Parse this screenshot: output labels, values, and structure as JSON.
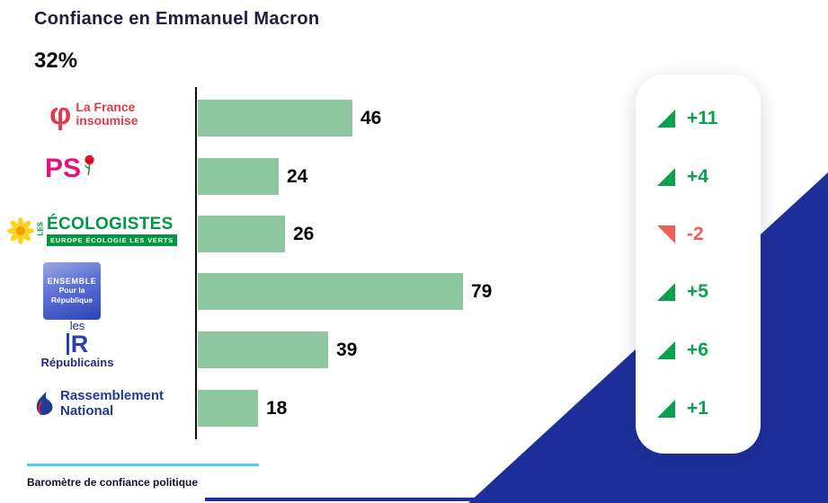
{
  "header": {
    "title": "Confiance en Emmanuel Macron",
    "score": "32%"
  },
  "chart_data": {
    "type": "bar",
    "orientation": "horizontal",
    "title": "Confiance en Emmanuel Macron",
    "overall_value": "32%",
    "categories": [
      "La France insoumise",
      "PS",
      "Les Écologistes",
      "Ensemble pour la République",
      "Les Républicains",
      "Rassemblement National"
    ],
    "values": [
      46,
      24,
      26,
      79,
      39,
      18
    ],
    "changes": [
      {
        "label": "+11",
        "trend": "down"
      },
      {
        "label": "+4",
        "trend": "down"
      },
      {
        "label": "-2",
        "trend": "up"
      },
      {
        "label": "+5",
        "trend": "down"
      },
      {
        "label": "+6",
        "trend": "down"
      },
      {
        "label": "+1",
        "trend": "down"
      }
    ],
    "xlim": [
      0,
      100
    ],
    "grid": false,
    "legend_position": "right-card",
    "bar_color": "#8cc7a0",
    "positive_color": "#0aa14e",
    "negative_color": "#ef5e58",
    "accent_navy": "#1d2f9b",
    "accent_cyan": "#54c7f3"
  },
  "logos": {
    "lfi": {
      "symbol": "φ",
      "line1": "La France",
      "line2": "insoumise"
    },
    "ps": {
      "text": "PS"
    },
    "eco": {
      "les": "LES",
      "name": "ÉCOLOGISTES",
      "subtitle": "EUROPE ÉCOLOGIE LES VERTS"
    },
    "ensemble": {
      "line1": "ENSEMBLE",
      "line2": "Pour la",
      "line3": "République"
    },
    "lr": {
      "les": "les",
      "r": "R",
      "name": "Républicains"
    },
    "rn": {
      "line1": "Rassemblement",
      "line2": "National"
    }
  },
  "footer": {
    "source_label": "Baromètre de confiance politique"
  }
}
